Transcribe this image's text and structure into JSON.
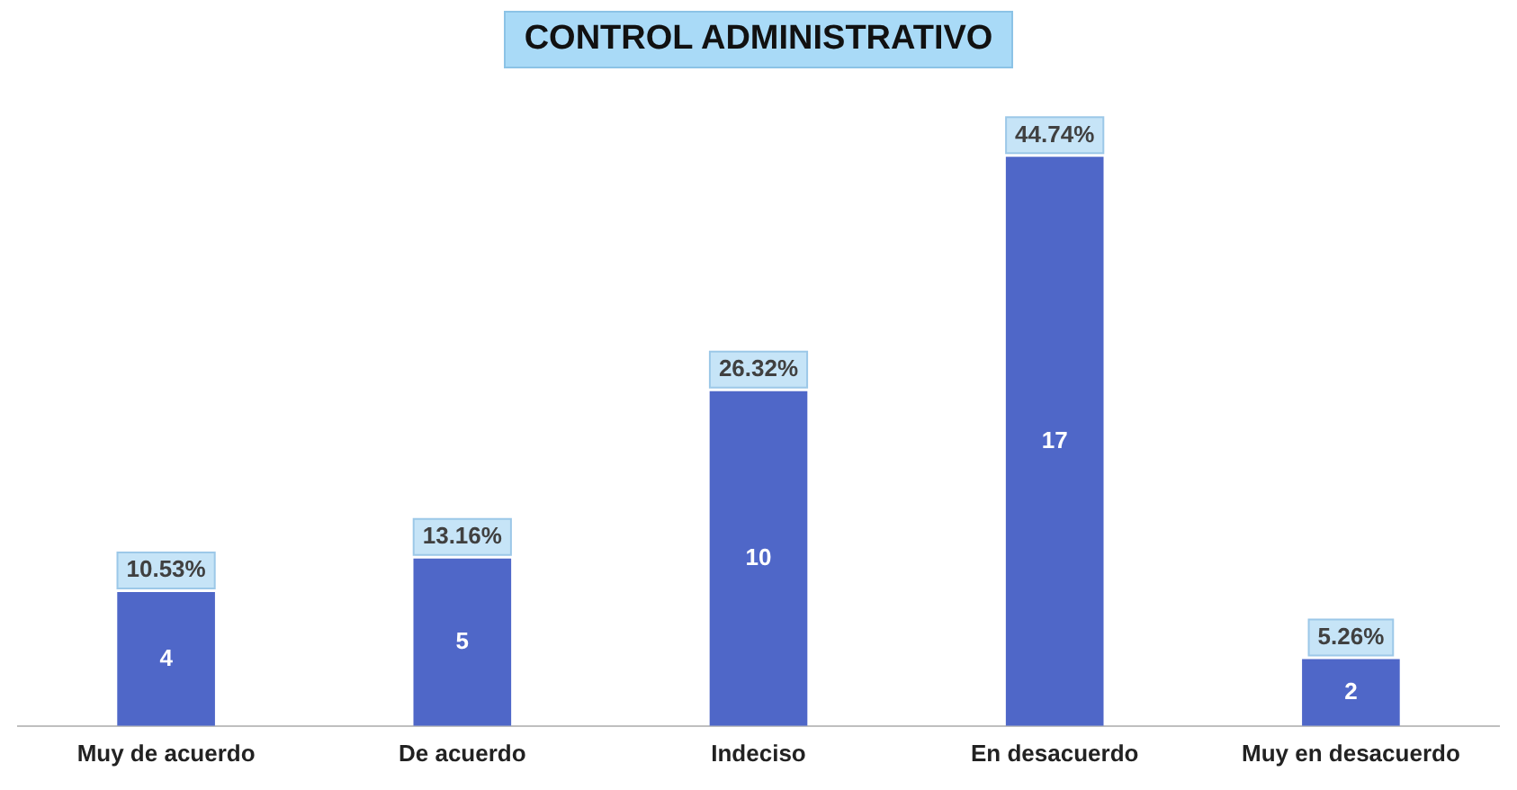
{
  "chart_data": {
    "type": "bar",
    "title": "CONTROL ADMINISTRATIVO",
    "categories": [
      "Muy de acuerdo",
      "De acuerdo",
      "Indeciso",
      "En desacuerdo",
      "Muy en desacuerdo"
    ],
    "values": [
      10.53,
      13.16,
      26.32,
      44.74,
      5.26
    ],
    "color": "#4f67c8",
    "value_labels": [
      "10.53%",
      "13.16%",
      "26.32%",
      "44.74%",
      "5.26%"
    ],
    "annotations": [
      "4",
      "5",
      "10",
      "17",
      "2"
    ],
    "grid": false,
    "legend": false
  }
}
